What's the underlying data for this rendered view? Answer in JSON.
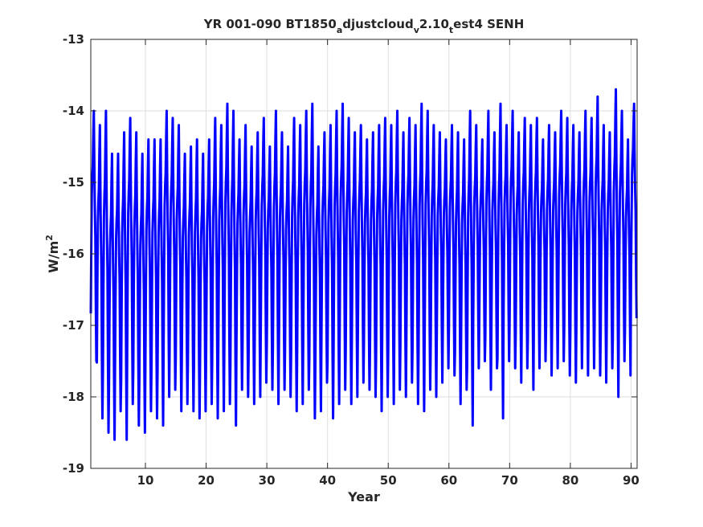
{
  "chart_data": {
    "type": "line",
    "title_parts": [
      "YR 001-090 BT1850",
      "a",
      "djustcloud",
      "v",
      "2.10",
      "t",
      "est4 SENH"
    ],
    "xlabel": "Year",
    "ylabel_main": "W/m",
    "ylabel_sup": "2",
    "xlim": [
      1,
      91
    ],
    "ylim": [
      -19,
      -13
    ],
    "xticks": [
      10,
      20,
      30,
      40,
      50,
      60,
      70,
      80,
      90
    ],
    "yticks": [
      -19,
      -18,
      -17,
      -16,
      -15,
      -14,
      -13
    ],
    "grid": true,
    "line_color": "#0000ff",
    "series": [
      {
        "x_start": 1,
        "x_step": 0.08333,
        "cycle_shape": [
          -17.4,
          -16.3,
          -15.4,
          -15.1,
          -14.9,
          -14.4,
          -14.0,
          -14.9,
          -15.6,
          -16.1,
          -17.3,
          -18.2
        ],
        "cycle_maxima": [
          -14.0,
          -14.2,
          -14.0,
          -14.6,
          -14.6,
          -14.3,
          -14.1,
          -14.3,
          -14.6,
          -14.4,
          -14.4,
          -14.4,
          -14.0,
          -14.1,
          -14.2,
          -14.6,
          -14.5,
          -14.4,
          -14.6,
          -14.4,
          -14.1,
          -14.2,
          -13.9,
          -14.0,
          -14.4,
          -14.2,
          -14.5,
          -14.3,
          -14.1,
          -14.5,
          -14.0,
          -14.3,
          -14.5,
          -14.1,
          -14.2,
          -14.0,
          -13.9,
          -14.5,
          -14.3,
          -14.2,
          -14.0,
          -13.9,
          -14.1,
          -14.3,
          -14.2,
          -14.4,
          -14.3,
          -14.2,
          -14.1,
          -14.2,
          -14.0,
          -14.3,
          -14.1,
          -14.2,
          -13.9,
          -14.0,
          -14.2,
          -14.3,
          -14.4,
          -14.2,
          -14.3,
          -14.4,
          -14.0,
          -14.2,
          -14.4,
          -14.0,
          -14.3,
          -13.9,
          -14.2,
          -14.0,
          -14.3,
          -14.1,
          -14.2,
          -14.1,
          -14.4,
          -14.2,
          -14.3,
          -14.0,
          -14.1,
          -14.2,
          -14.3,
          -14.0,
          -14.1,
          -13.8,
          -14.2,
          -14.3,
          -13.7,
          -14.0,
          -14.4,
          -13.9
        ],
        "cycle_minima": [
          -17.5,
          -18.3,
          -18.5,
          -18.6,
          -18.2,
          -18.6,
          -18.1,
          -18.4,
          -18.5,
          -18.2,
          -18.3,
          -18.4,
          -18.0,
          -17.9,
          -18.2,
          -18.1,
          -18.2,
          -18.3,
          -18.2,
          -18.1,
          -18.3,
          -18.2,
          -18.1,
          -18.4,
          -17.9,
          -18.0,
          -18.1,
          -18.0,
          -17.8,
          -17.9,
          -18.1,
          -17.9,
          -18.0,
          -18.2,
          -18.1,
          -17.9,
          -18.3,
          -18.2,
          -17.8,
          -18.3,
          -18.1,
          -17.9,
          -18.1,
          -18.0,
          -17.8,
          -17.9,
          -18.0,
          -18.2,
          -18.0,
          -18.1,
          -17.9,
          -18.0,
          -17.8,
          -18.1,
          -18.2,
          -17.9,
          -18.0,
          -17.8,
          -17.6,
          -17.7,
          -18.1,
          -17.9,
          -18.4,
          -17.6,
          -17.5,
          -17.9,
          -17.6,
          -18.3,
          -17.5,
          -17.6,
          -17.8,
          -17.6,
          -17.9,
          -17.6,
          -17.5,
          -17.7,
          -17.6,
          -17.5,
          -17.7,
          -17.8,
          -17.6,
          -17.7,
          -17.6,
          -17.7,
          -17.8,
          -17.6,
          -18.0,
          -17.5,
          -17.7,
          -16.9
        ]
      }
    ]
  }
}
